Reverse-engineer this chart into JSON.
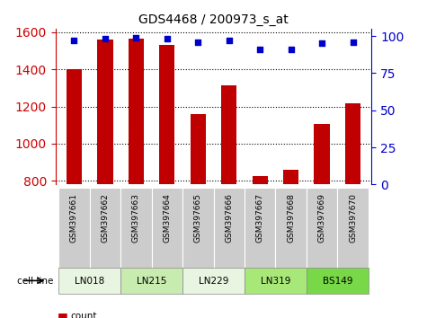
{
  "title": "GDS4468 / 200973_s_at",
  "samples": [
    "GSM397661",
    "GSM397662",
    "GSM397663",
    "GSM397664",
    "GSM397665",
    "GSM397666",
    "GSM397667",
    "GSM397668",
    "GSM397669",
    "GSM397670"
  ],
  "counts": [
    1400,
    1560,
    1565,
    1530,
    1160,
    1315,
    825,
    860,
    1105,
    1215
  ],
  "percentiles": [
    97,
    98,
    99,
    98,
    96,
    97,
    91,
    91,
    95,
    96
  ],
  "cell_lines": [
    {
      "name": "LN018",
      "samples": [
        0,
        1
      ],
      "color": "#e8f5e0"
    },
    {
      "name": "LN215",
      "samples": [
        2,
        3
      ],
      "color": "#c8ebb0"
    },
    {
      "name": "LN229",
      "samples": [
        4,
        5
      ],
      "color": "#e8f5e0"
    },
    {
      "name": "LN319",
      "samples": [
        6,
        7
      ],
      "color": "#a8e878"
    },
    {
      "name": "BS149",
      "samples": [
        8,
        9
      ],
      "color": "#78d848"
    }
  ],
  "ylim_left": [
    780,
    1620
  ],
  "ylim_right": [
    0,
    105
  ],
  "yticks_left": [
    800,
    1000,
    1200,
    1400,
    1600
  ],
  "yticks_right": [
    0,
    25,
    50,
    75,
    100
  ],
  "bar_color": "#c00000",
  "dot_color": "#0000cc",
  "bar_width": 0.5,
  "left_axis_color": "#cc0000",
  "right_axis_color": "#0000cc",
  "bg_color": "#ffffff",
  "grid_color": "#000000",
  "sample_bg_color": "#cccccc"
}
